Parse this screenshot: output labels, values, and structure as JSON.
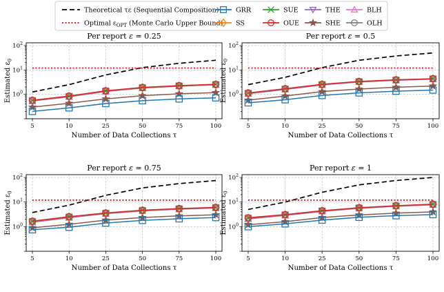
{
  "chart_data": {
    "type": "line",
    "y_scale": "log",
    "ylim": [
      0.1,
      130
    ],
    "xlabel": "Number of Data Collections τ",
    "ylabel": "Estimated ε",
    "ylabel_subscript": "0",
    "x_categories": [
      "5",
      "10",
      "25",
      "50",
      "75",
      "100"
    ],
    "y_tick_labels": [
      {
        "value": 1,
        "base": "10",
        "exp": "0"
      },
      {
        "value": 10,
        "base": "10",
        "exp": "1"
      },
      {
        "value": 100,
        "base": "10",
        "exp": "2"
      }
    ],
    "legend": [
      {
        "key": "theory",
        "label_main": "Theoretical τε (Sequential Composition)",
        "label_sub": ""
      },
      {
        "key": "optimal",
        "label_main": "Optimal ε",
        "label_sub": "OPT",
        "label_rest": " (Monte Carlo Upper Bound)"
      },
      {
        "key": "GRR",
        "label_main": "GRR",
        "label_sub": ""
      },
      {
        "key": "SS",
        "label_main": "SS",
        "label_sub": ""
      },
      {
        "key": "SUE",
        "label_main": "SUE",
        "label_sub": ""
      },
      {
        "key": "OUE",
        "label_main": "OUE",
        "label_sub": ""
      },
      {
        "key": "THE",
        "label_main": "THE",
        "label_sub": ""
      },
      {
        "key": "SHE",
        "label_main": "SHE",
        "label_sub": ""
      },
      {
        "key": "BLH",
        "label_main": "BLH",
        "label_sub": ""
      },
      {
        "key": "OLH",
        "label_main": "OLH",
        "label_sub": ""
      }
    ],
    "styles": {
      "theory": {
        "color": "#000000",
        "dash": "7,4",
        "marker": "none"
      },
      "optimal": {
        "color": "#e8000b",
        "dash": "2,2.5",
        "marker": "none"
      },
      "GRR": {
        "color": "#1f77b4",
        "marker": "square"
      },
      "SS": {
        "color": "#ff7f0e",
        "marker": "diamond"
      },
      "SUE": {
        "color": "#2ca02c",
        "marker": "x"
      },
      "OUE": {
        "color": "#d62728",
        "marker": "circle"
      },
      "THE": {
        "color": "#9467bd",
        "marker": "triangle-down"
      },
      "SHE": {
        "color": "#8c564b",
        "marker": "star"
      },
      "BLH": {
        "color": "#e377c2",
        "marker": "triangle-up"
      },
      "OLH": {
        "color": "#7f7f7f",
        "marker": "circle"
      }
    },
    "panels": [
      {
        "title_prefix": "Per report ",
        "title_eps": "ε",
        "title_value": " = 0.25",
        "series": {
          "theory": [
            1.25,
            2.5,
            6.25,
            12.5,
            18.75,
            25
          ],
          "optimal": [
            12,
            12,
            12,
            12,
            12,
            12
          ],
          "GRR": [
            0.2,
            0.28,
            0.42,
            0.55,
            0.65,
            0.72
          ],
          "SS": [
            0.55,
            0.82,
            1.35,
            1.85,
            2.2,
            2.5
          ],
          "SUE": [
            0.56,
            0.84,
            1.38,
            1.9,
            2.25,
            2.55
          ],
          "OUE": [
            0.57,
            0.85,
            1.4,
            1.92,
            2.28,
            2.58
          ],
          "THE": [
            0.54,
            0.8,
            1.33,
            1.82,
            2.17,
            2.48
          ],
          "SHE": [
            0.3,
            0.43,
            0.65,
            0.88,
            1.05,
            1.18
          ],
          "BLH": [
            0.53,
            0.79,
            1.3,
            1.8,
            2.15,
            2.45
          ],
          "OLH": [
            0.56,
            0.83,
            1.37,
            1.88,
            2.23,
            2.53
          ]
        }
      },
      {
        "title_prefix": "Per report ",
        "title_eps": "ε",
        "title_value": " = 0.5",
        "series": {
          "theory": [
            2.5,
            5,
            12.5,
            25,
            37.5,
            50
          ],
          "optimal": [
            12,
            12,
            12,
            12,
            12,
            12
          ],
          "GRR": [
            0.45,
            0.6,
            0.9,
            1.15,
            1.35,
            1.5
          ],
          "SS": [
            1.1,
            1.65,
            2.5,
            3.3,
            3.85,
            4.3
          ],
          "SUE": [
            1.12,
            1.68,
            2.55,
            3.35,
            3.9,
            4.35
          ],
          "OUE": [
            1.14,
            1.7,
            2.58,
            3.38,
            3.95,
            4.4
          ],
          "THE": [
            1.08,
            1.6,
            2.45,
            3.25,
            3.8,
            4.25
          ],
          "SHE": [
            0.58,
            0.85,
            1.3,
            1.65,
            1.95,
            2.2
          ],
          "BLH": [
            1.05,
            1.58,
            2.42,
            3.2,
            3.75,
            4.2
          ],
          "OLH": [
            1.11,
            1.66,
            2.52,
            3.32,
            3.88,
            4.33
          ]
        }
      },
      {
        "title_prefix": "Per report ",
        "title_eps": "ε",
        "title_value": " = 0.75",
        "series": {
          "theory": [
            3.75,
            7.5,
            18.75,
            37.5,
            56.25,
            75
          ],
          "optimal": [
            12,
            12,
            12,
            12,
            12,
            12
          ],
          "GRR": [
            0.75,
            0.95,
            1.4,
            1.8,
            2.1,
            2.35
          ],
          "SS": [
            1.6,
            2.45,
            3.5,
            4.5,
            5.3,
            5.9
          ],
          "SUE": [
            1.65,
            2.5,
            3.55,
            4.6,
            5.4,
            6.0
          ],
          "OUE": [
            1.68,
            2.55,
            3.6,
            4.65,
            5.45,
            6.1
          ],
          "THE": [
            1.55,
            2.35,
            3.4,
            4.4,
            5.2,
            5.8
          ],
          "SHE": [
            0.9,
            1.25,
            1.85,
            2.35,
            2.75,
            3.05
          ],
          "BLH": [
            1.5,
            2.3,
            3.35,
            4.35,
            5.1,
            5.7
          ],
          "OLH": [
            1.62,
            2.48,
            3.52,
            4.55,
            5.35,
            5.95
          ]
        }
      },
      {
        "title_prefix": "Per report ",
        "title_eps": "ε",
        "title_value": " = 1",
        "series": {
          "theory": [
            5,
            10,
            25,
            50,
            75,
            100
          ],
          "optimal": [
            12,
            12,
            12,
            12,
            12,
            12
          ],
          "GRR": [
            1.0,
            1.3,
            1.85,
            2.4,
            2.8,
            3.1
          ],
          "SS": [
            2.2,
            3.0,
            4.3,
            5.7,
            6.9,
            7.9
          ],
          "SUE": [
            2.25,
            3.05,
            4.4,
            5.85,
            7.05,
            8.1
          ],
          "OUE": [
            2.3,
            3.1,
            4.45,
            5.9,
            7.1,
            8.2
          ],
          "THE": [
            2.1,
            2.9,
            4.2,
            5.6,
            6.8,
            7.8
          ],
          "SHE": [
            1.2,
            1.6,
            2.35,
            3.0,
            3.55,
            4.0
          ],
          "BLH": [
            2.05,
            2.85,
            4.15,
            5.5,
            6.7,
            7.7
          ],
          "OLH": [
            2.22,
            3.02,
            4.35,
            5.75,
            6.95,
            8.0
          ]
        }
      }
    ]
  }
}
